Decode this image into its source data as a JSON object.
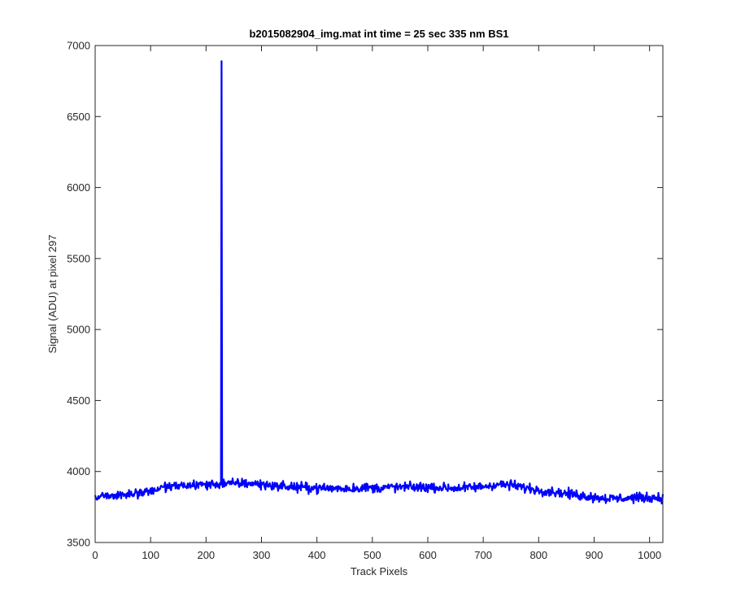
{
  "chart_data": {
    "type": "line",
    "title": "b2015082904_img.mat int time = 25 sec  335 nm BS1",
    "xlabel": "Track Pixels",
    "ylabel": "Signal (ADU) at pixel 297",
    "xlim": [
      0,
      1024
    ],
    "ylim": [
      3500,
      7000
    ],
    "xticks": [
      0,
      100,
      200,
      300,
      400,
      500,
      600,
      700,
      800,
      900,
      1000
    ],
    "yticks": [
      3500,
      4000,
      4500,
      5000,
      5500,
      6000,
      6500,
      7000
    ],
    "grid": false,
    "box": true,
    "series": [
      {
        "color": "#0000ff",
        "x": [
          0,
          20,
          40,
          60,
          80,
          100,
          120,
          140,
          160,
          180,
          200,
          220,
          225,
          227,
          228,
          229,
          231,
          235,
          250,
          270,
          290,
          310,
          330,
          350,
          370,
          390,
          410,
          430,
          450,
          470,
          490,
          510,
          530,
          550,
          570,
          590,
          610,
          630,
          650,
          670,
          690,
          710,
          730,
          750,
          770,
          790,
          810,
          830,
          850,
          870,
          890,
          910,
          930,
          950,
          970,
          990,
          1010,
          1024
        ],
        "y": [
          3825,
          3830,
          3835,
          3840,
          3850,
          3860,
          3885,
          3895,
          3900,
          3905,
          3908,
          3910,
          3912,
          3915,
          6890,
          3920,
          3915,
          3912,
          3915,
          3918,
          3912,
          3905,
          3898,
          3892,
          3888,
          3885,
          3882,
          3882,
          3880,
          3882,
          3885,
          3885,
          3888,
          3890,
          3890,
          3890,
          3888,
          3885,
          3882,
          3885,
          3890,
          3900,
          3910,
          3905,
          3890,
          3875,
          3865,
          3855,
          3845,
          3835,
          3825,
          3815,
          3810,
          3810,
          3815,
          3815,
          3815,
          3815
        ],
        "noise_amplitude": 30
      }
    ]
  }
}
